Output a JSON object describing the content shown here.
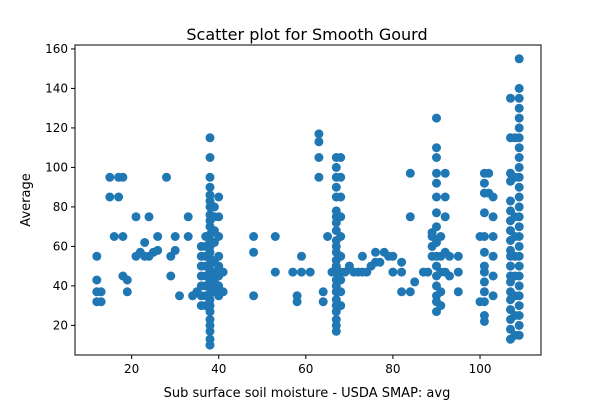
{
  "chart_data": {
    "type": "scatter",
    "title": "Scatter plot for Smooth Gourd",
    "xlabel": "Sub surface soil moisture - USDA SMAP: avg",
    "ylabel": "Average",
    "xlim": [
      7,
      114
    ],
    "ylim": [
      5,
      162
    ],
    "x_ticks": [
      20,
      40,
      60,
      80,
      100
    ],
    "y_ticks": [
      20,
      40,
      60,
      80,
      100,
      120,
      140,
      160
    ],
    "grid": false,
    "marker_color": "#1f77b4",
    "points": [
      [
        12,
        55
      ],
      [
        12,
        43
      ],
      [
        12,
        37
      ],
      [
        12,
        32
      ],
      [
        13,
        37
      ],
      [
        13,
        32
      ],
      [
        15,
        95
      ],
      [
        15,
        85
      ],
      [
        16,
        65
      ],
      [
        17,
        95
      ],
      [
        17,
        85
      ],
      [
        18,
        95
      ],
      [
        18,
        65
      ],
      [
        18,
        45
      ],
      [
        19,
        43
      ],
      [
        19,
        37
      ],
      [
        21,
        75
      ],
      [
        21,
        55
      ],
      [
        22,
        57
      ],
      [
        23,
        62
      ],
      [
        23,
        55
      ],
      [
        24,
        75
      ],
      [
        24,
        55
      ],
      [
        25,
        57
      ],
      [
        26,
        65
      ],
      [
        26,
        58
      ],
      [
        28,
        95
      ],
      [
        29,
        55
      ],
      [
        29,
        45
      ],
      [
        30,
        65
      ],
      [
        30,
        58
      ],
      [
        31,
        35
      ],
      [
        33,
        75
      ],
      [
        33,
        65
      ],
      [
        34,
        35
      ],
      [
        35,
        37
      ],
      [
        36,
        30
      ],
      [
        36,
        35
      ],
      [
        36,
        40
      ],
      [
        36,
        45
      ],
      [
        36,
        50
      ],
      [
        36,
        55
      ],
      [
        36,
        60
      ],
      [
        37,
        30
      ],
      [
        37,
        35
      ],
      [
        37,
        40
      ],
      [
        37,
        45
      ],
      [
        37,
        50
      ],
      [
        37,
        55
      ],
      [
        37,
        60
      ],
      [
        37,
        65
      ],
      [
        38,
        10
      ],
      [
        38,
        13
      ],
      [
        38,
        17
      ],
      [
        38,
        20
      ],
      [
        38,
        23
      ],
      [
        38,
        27
      ],
      [
        38,
        30
      ],
      [
        38,
        33
      ],
      [
        38,
        36
      ],
      [
        38,
        39
      ],
      [
        38,
        42
      ],
      [
        38,
        45
      ],
      [
        38,
        48
      ],
      [
        38,
        51
      ],
      [
        38,
        54
      ],
      [
        38,
        57
      ],
      [
        38,
        60
      ],
      [
        38,
        63
      ],
      [
        38,
        66
      ],
      [
        38,
        70
      ],
      [
        38,
        73
      ],
      [
        38,
        76
      ],
      [
        38,
        80
      ],
      [
        38,
        83
      ],
      [
        38,
        86
      ],
      [
        38,
        90
      ],
      [
        38,
        95
      ],
      [
        38,
        105
      ],
      [
        38,
        115
      ],
      [
        39,
        37
      ],
      [
        39,
        42
      ],
      [
        39,
        47
      ],
      [
        39,
        52
      ],
      [
        39,
        62
      ],
      [
        39,
        68
      ],
      [
        39,
        75
      ],
      [
        39,
        80
      ],
      [
        40,
        35
      ],
      [
        40,
        40
      ],
      [
        40,
        45
      ],
      [
        40,
        50
      ],
      [
        40,
        55
      ],
      [
        40,
        65
      ],
      [
        40,
        75
      ],
      [
        40,
        85
      ],
      [
        41,
        47
      ],
      [
        41,
        37
      ],
      [
        48,
        65
      ],
      [
        48,
        57
      ],
      [
        48,
        35
      ],
      [
        53,
        65
      ],
      [
        53,
        47
      ],
      [
        57,
        47
      ],
      [
        58,
        35
      ],
      [
        58,
        32
      ],
      [
        59,
        55
      ],
      [
        59,
        47
      ],
      [
        61,
        47
      ],
      [
        63,
        117
      ],
      [
        63,
        113
      ],
      [
        63,
        105
      ],
      [
        63,
        95
      ],
      [
        64,
        37
      ],
      [
        64,
        32
      ],
      [
        65,
        65
      ],
      [
        66,
        47
      ],
      [
        67,
        17
      ],
      [
        67,
        20
      ],
      [
        67,
        23
      ],
      [
        67,
        27
      ],
      [
        67,
        30
      ],
      [
        67,
        33
      ],
      [
        67,
        37
      ],
      [
        67,
        40
      ],
      [
        67,
        43
      ],
      [
        67,
        47
      ],
      [
        67,
        50
      ],
      [
        67,
        53
      ],
      [
        67,
        57
      ],
      [
        67,
        60
      ],
      [
        67,
        63
      ],
      [
        67,
        68
      ],
      [
        67,
        72
      ],
      [
        67,
        75
      ],
      [
        67,
        78
      ],
      [
        67,
        85
      ],
      [
        67,
        90
      ],
      [
        67,
        95
      ],
      [
        67,
        100
      ],
      [
        67,
        105
      ],
      [
        68,
        30
      ],
      [
        68,
        37
      ],
      [
        68,
        43
      ],
      [
        68,
        47
      ],
      [
        68,
        55
      ],
      [
        68,
        65
      ],
      [
        68,
        75
      ],
      [
        68,
        85
      ],
      [
        68,
        95
      ],
      [
        68,
        105
      ],
      [
        69,
        47
      ],
      [
        70,
        50
      ],
      [
        71,
        47
      ],
      [
        72,
        47
      ],
      [
        73,
        55
      ],
      [
        73,
        47
      ],
      [
        74,
        47
      ],
      [
        75,
        50
      ],
      [
        76,
        52
      ],
      [
        76,
        57
      ],
      [
        77,
        52
      ],
      [
        78,
        57
      ],
      [
        79,
        55
      ],
      [
        80,
        55
      ],
      [
        80,
        47
      ],
      [
        82,
        52
      ],
      [
        82,
        47
      ],
      [
        82,
        37
      ],
      [
        84,
        97
      ],
      [
        84,
        75
      ],
      [
        84,
        37
      ],
      [
        85,
        42
      ],
      [
        87,
        47
      ],
      [
        88,
        47
      ],
      [
        89,
        60
      ],
      [
        89,
        55
      ],
      [
        89,
        65
      ],
      [
        89,
        67
      ],
      [
        90,
        125
      ],
      [
        90,
        110
      ],
      [
        90,
        105
      ],
      [
        90,
        97
      ],
      [
        90,
        92
      ],
      [
        90,
        85
      ],
      [
        90,
        77
      ],
      [
        90,
        70
      ],
      [
        90,
        62
      ],
      [
        90,
        55
      ],
      [
        90,
        50
      ],
      [
        90,
        45
      ],
      [
        90,
        40
      ],
      [
        90,
        35
      ],
      [
        90,
        32
      ],
      [
        90,
        27
      ],
      [
        91,
        65
      ],
      [
        91,
        55
      ],
      [
        91,
        47
      ],
      [
        91,
        37
      ],
      [
        91,
        30
      ],
      [
        92,
        97
      ],
      [
        92,
        85
      ],
      [
        92,
        75
      ],
      [
        92,
        57
      ],
      [
        92,
        47
      ],
      [
        93,
        55
      ],
      [
        93,
        45
      ],
      [
        95,
        55
      ],
      [
        95,
        47
      ],
      [
        95,
        37
      ],
      [
        100,
        65
      ],
      [
        100,
        32
      ],
      [
        101,
        97
      ],
      [
        101,
        92
      ],
      [
        101,
        87
      ],
      [
        101,
        77
      ],
      [
        101,
        65
      ],
      [
        101,
        57
      ],
      [
        101,
        50
      ],
      [
        101,
        47
      ],
      [
        101,
        42
      ],
      [
        101,
        37
      ],
      [
        101,
        32
      ],
      [
        101,
        25
      ],
      [
        101,
        22
      ],
      [
        102,
        97
      ],
      [
        102,
        87
      ],
      [
        103,
        85
      ],
      [
        103,
        75
      ],
      [
        103,
        65
      ],
      [
        103,
        55
      ],
      [
        103,
        45
      ],
      [
        103,
        35
      ],
      [
        107,
        135
      ],
      [
        107,
        115
      ],
      [
        107,
        97
      ],
      [
        107,
        93
      ],
      [
        107,
        83
      ],
      [
        107,
        78
      ],
      [
        107,
        73
      ],
      [
        107,
        68
      ],
      [
        107,
        63
      ],
      [
        107,
        58
      ],
      [
        107,
        55
      ],
      [
        107,
        50
      ],
      [
        107,
        45
      ],
      [
        107,
        42
      ],
      [
        107,
        37
      ],
      [
        107,
        33
      ],
      [
        107,
        28
      ],
      [
        107,
        23
      ],
      [
        107,
        18
      ],
      [
        107,
        13
      ],
      [
        108,
        115
      ],
      [
        108,
        95
      ],
      [
        108,
        75
      ],
      [
        108,
        65
      ],
      [
        108,
        55
      ],
      [
        108,
        45
      ],
      [
        108,
        35
      ],
      [
        108,
        25
      ],
      [
        108,
        15
      ],
      [
        109,
        155
      ],
      [
        109,
        140
      ],
      [
        109,
        135
      ],
      [
        109,
        130
      ],
      [
        109,
        125
      ],
      [
        109,
        120
      ],
      [
        109,
        115
      ],
      [
        109,
        110
      ],
      [
        109,
        105
      ],
      [
        109,
        100
      ],
      [
        109,
        95
      ],
      [
        109,
        90
      ],
      [
        109,
        85
      ],
      [
        109,
        80
      ],
      [
        109,
        75
      ],
      [
        109,
        70
      ],
      [
        109,
        65
      ],
      [
        109,
        60
      ],
      [
        109,
        55
      ],
      [
        109,
        50
      ],
      [
        109,
        45
      ],
      [
        109,
        40
      ],
      [
        109,
        35
      ],
      [
        109,
        30
      ],
      [
        109,
        25
      ],
      [
        109,
        20
      ],
      [
        109,
        15
      ]
    ]
  }
}
